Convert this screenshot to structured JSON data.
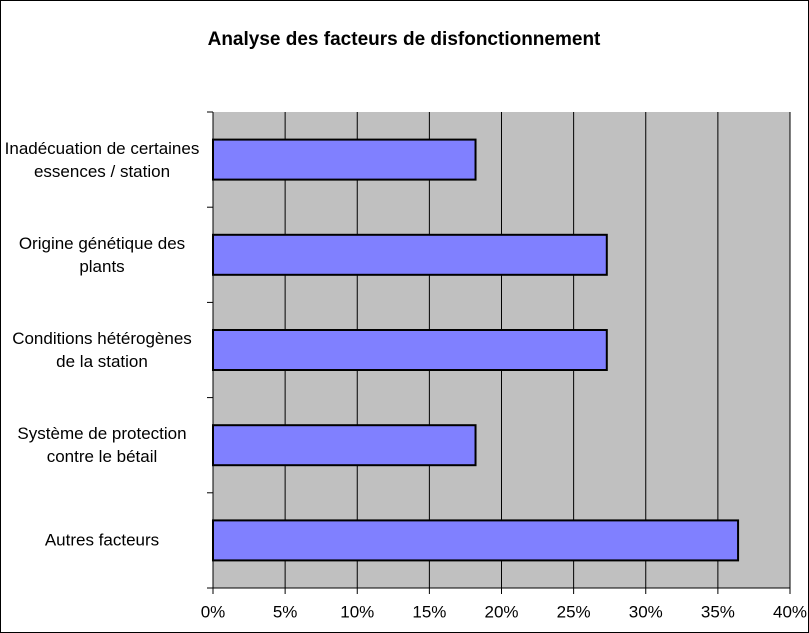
{
  "chart_data": {
    "type": "barh",
    "title": "Analyse des facteurs de disfonctionnement",
    "categories": [
      "Inadécuation de certaines essences / station",
      "Origine génétique des plants",
      "Conditions hétérogènes de la station",
      "Système de protection contre le bétail",
      "Autres facteurs"
    ],
    "values": [
      18.2,
      27.3,
      27.3,
      18.2,
      36.4
    ],
    "color": "#8080ff",
    "xlim": [
      0,
      40
    ],
    "xticks": [
      {
        "value": 0,
        "label": "0%"
      },
      {
        "value": 5,
        "label": "5%"
      },
      {
        "value": 10,
        "label": "10%"
      },
      {
        "value": 15,
        "label": "15%"
      },
      {
        "value": 20,
        "label": "20%"
      },
      {
        "value": 25,
        "label": "25%"
      },
      {
        "value": 30,
        "label": "30%"
      },
      {
        "value": 35,
        "label": "35%"
      },
      {
        "value": 40,
        "label": "40%"
      }
    ],
    "grid": true
  }
}
